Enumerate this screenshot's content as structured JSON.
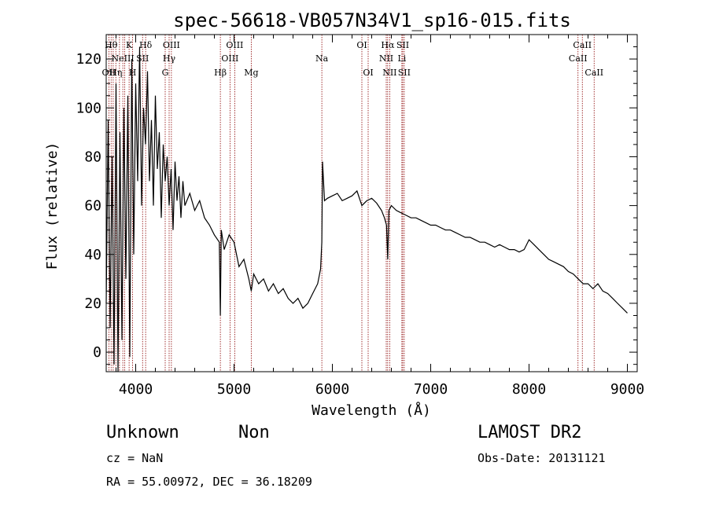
{
  "chart_data": {
    "type": "line",
    "title": "spec-56618-VB057N34V1_sp16-015.fits",
    "xlabel": "Wavelength (Å)",
    "ylabel": "Flux (relative)",
    "xlim": [
      3700,
      9100
    ],
    "ylim": [
      -8,
      130
    ],
    "xticks": [
      4000,
      5000,
      6000,
      7000,
      8000,
      9000
    ],
    "yticks": [
      0,
      20,
      40,
      60,
      80,
      100,
      120
    ],
    "grid": false,
    "series": [
      {
        "x": [
          3700,
          3720,
          3740,
          3760,
          3780,
          3800,
          3820,
          3840,
          3860,
          3880,
          3900,
          3920,
          3940,
          3960,
          3980,
          4000,
          4020,
          4040,
          4060,
          4080,
          4100,
          4120,
          4140,
          4160,
          4180,
          4200,
          4220,
          4240,
          4260,
          4280,
          4300,
          4320,
          4340,
          4360,
          4380,
          4400,
          4420,
          4440,
          4460,
          4480,
          4500,
          4550,
          4600,
          4650,
          4700,
          4750,
          4800,
          4850,
          4861,
          4870,
          4900,
          4950,
          5000,
          5050,
          5100,
          5150,
          5175,
          5200,
          5250,
          5300,
          5350,
          5400,
          5450,
          5500,
          5550,
          5600,
          5650,
          5700,
          5750,
          5800,
          5850,
          5880,
          5893,
          5900,
          5920,
          5950,
          6000,
          6050,
          6100,
          6150,
          6200,
          6250,
          6300,
          6350,
          6400,
          6450,
          6500,
          6530,
          6550,
          6563,
          6575,
          6600,
          6650,
          6700,
          6750,
          6800,
          6850,
          6900,
          6950,
          7000,
          7050,
          7100,
          7150,
          7200,
          7250,
          7300,
          7350,
          7400,
          7450,
          7500,
          7550,
          7600,
          7650,
          7700,
          7750,
          7800,
          7850,
          7900,
          7950,
          8000,
          8050,
          8100,
          8150,
          8200,
          8250,
          8300,
          8350,
          8400,
          8450,
          8500,
          8550,
          8600,
          8650,
          8700,
          8750,
          8800,
          8850,
          8900,
          8950,
          9000
        ],
        "y": [
          20,
          95,
          10,
          80,
          -5,
          110,
          -8,
          90,
          5,
          100,
          30,
          105,
          -2,
          120,
          40,
          110,
          70,
          125,
          60,
          100,
          85,
          115,
          70,
          95,
          60,
          105,
          75,
          90,
          55,
          85,
          70,
          80,
          60,
          75,
          50,
          78,
          62,
          72,
          55,
          70,
          60,
          65,
          58,
          62,
          55,
          52,
          48,
          45,
          15,
          50,
          42,
          48,
          45,
          35,
          38,
          30,
          25,
          32,
          28,
          30,
          25,
          28,
          24,
          26,
          22,
          20,
          22,
          18,
          20,
          24,
          28,
          34,
          45,
          78,
          62,
          63,
          64,
          65,
          62,
          63,
          64,
          66,
          60,
          62,
          63,
          61,
          58,
          55,
          52,
          38,
          58,
          60,
          58,
          57,
          56,
          55,
          55,
          54,
          53,
          52,
          52,
          51,
          50,
          50,
          49,
          48,
          47,
          47,
          46,
          45,
          45,
          44,
          43,
          44,
          43,
          42,
          42,
          41,
          42,
          46,
          44,
          42,
          40,
          38,
          37,
          36,
          35,
          33,
          32,
          30,
          28,
          28,
          26,
          28,
          25,
          24,
          22,
          20,
          18,
          16
        ]
      }
    ],
    "lines": [
      {
        "wl": 3727,
        "label": "OII",
        "row": 3
      },
      {
        "wl": 3750,
        "label": "Hθ",
        "row": 1
      },
      {
        "wl": 3771,
        "label": "",
        "row": 0
      },
      {
        "wl": 3798,
        "label": "Hη",
        "row": 3
      },
      {
        "wl": 3835,
        "label": "",
        "row": 0
      },
      {
        "wl": 3869,
        "label": "NeIII",
        "row": 2
      },
      {
        "wl": 3889,
        "label": "",
        "row": 0
      },
      {
        "wl": 3933,
        "label": "K",
        "row": 1
      },
      {
        "wl": 3968,
        "label": "H",
        "row": 3
      },
      {
        "wl": 4070,
        "label": "SII",
        "row": 2
      },
      {
        "wl": 4101,
        "label": "Hδ",
        "row": 1
      },
      {
        "wl": 4300,
        "label": "G",
        "row": 3
      },
      {
        "wl": 4340,
        "label": "Hγ",
        "row": 2
      },
      {
        "wl": 4363,
        "label": "OIII",
        "row": 1
      },
      {
        "wl": 4861,
        "label": "Hβ",
        "row": 3
      },
      {
        "wl": 4959,
        "label": "OIII",
        "row": 2
      },
      {
        "wl": 5007,
        "label": "OIII",
        "row": 1
      },
      {
        "wl": 5175,
        "label": "Mg",
        "row": 3
      },
      {
        "wl": 5893,
        "label": "Na",
        "row": 2
      },
      {
        "wl": 6300,
        "label": "OI",
        "row": 1
      },
      {
        "wl": 6364,
        "label": "OI",
        "row": 3
      },
      {
        "wl": 6548,
        "label": "NII",
        "row": 2
      },
      {
        "wl": 6563,
        "label": "Hα",
        "row": 1
      },
      {
        "wl": 6583,
        "label": "NII",
        "row": 3
      },
      {
        "wl": 6707,
        "label": "Li",
        "row": 2
      },
      {
        "wl": 6716,
        "label": "SII",
        "row": 1
      },
      {
        "wl": 6731,
        "label": "SII",
        "row": 3
      },
      {
        "wl": 8498,
        "label": "CaII",
        "row": 2
      },
      {
        "wl": 8542,
        "label": "CaII",
        "row": 1
      },
      {
        "wl": 8662,
        "label": "CaII",
        "row": 3
      }
    ]
  },
  "info": {
    "class": "Unknown",
    "subclass": "Non",
    "survey": "LAMOST DR2",
    "cz": "cz = NaN",
    "obs_date": "Obs-Date: 20131121",
    "radec": "RA =  55.00972, DEC =  36.18209"
  },
  "colors": {
    "axis": "#000000",
    "spectrum": "#000000",
    "line_marker": "#8b0000"
  }
}
